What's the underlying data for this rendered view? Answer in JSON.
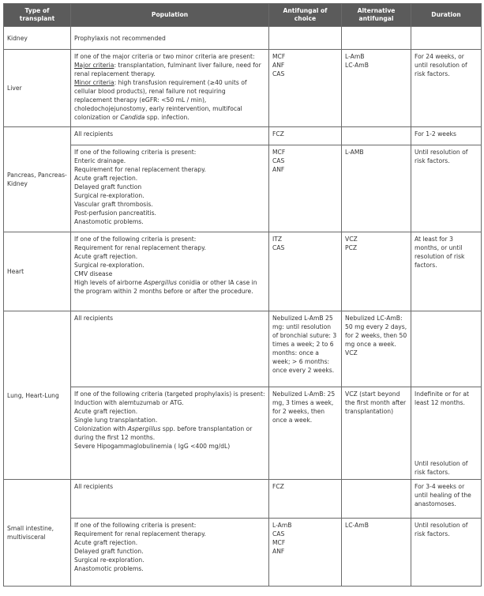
{
  "headers": [
    "Type of transplant",
    "Population",
    "Antifungal of choice",
    "Alternative antifungal",
    "Duration"
  ],
  "kidney": {
    "type": "Kidney",
    "population": "Prophylaxis not recommended"
  },
  "liver": {
    "type": "Liver",
    "intro": "If one of the major criteria or two minor criteria are present:",
    "major_label": "Major criteria",
    "major_text": ": transplantation, fulminant liver failure, need for renal replacement therapy.",
    "minor_label": "Minor criteria",
    "minor_text": ": high transfusion requirement (≥40 units of cellular blood products), renal failure not requiring replacement therapy (eGFR: <50 mL / min), choledochojejunostomy, early reintervention, multifocal colonization or ",
    "minor_italic": "Candida",
    "minor_end": " spp. infection.",
    "choice": [
      "MCF",
      "ANF",
      "CAS"
    ],
    "alternative": [
      "L-AmB",
      "LC-AmB"
    ],
    "duration": "For 24 weeks, or until resolution of risk factors."
  },
  "pancreas": {
    "type": "Pancreas, Pancreas-Kidney",
    "all": {
      "population": "All recipients",
      "choice": "FCZ",
      "duration": "For 1-2 weeks"
    },
    "criteria": {
      "lines": [
        "If one of the following criteria is present:",
        "Enteric drainage.",
        "Requirement for renal replacement therapy.",
        "Acute graft rejection.",
        "Delayed graft function",
        "Surgical re-exploration.",
        "Vascular graft thrombosis.",
        "Post-perfusion pancreatitis.",
        "Anastomotic problems."
      ],
      "choice": [
        "MCF",
        "CAS",
        "ANF"
      ],
      "alternative": "L-AMB",
      "duration": "Until resolution of risk factors."
    }
  },
  "heart": {
    "type": "Heart",
    "lines": [
      "If one of the following criteria is present:",
      "Requirement for renal replacement therapy.",
      "Acute graft rejection.",
      "Surgical re-exploration.",
      "CMV disease"
    ],
    "last_pre": "High levels of airborne ",
    "last_italic": "Aspergillus",
    "last_post": " conidia or other IA case in the program within 2 months before or after the procedure.",
    "choice": [
      "ITZ",
      "CAS"
    ],
    "alternative": [
      "VCZ",
      "PCZ"
    ],
    "duration": "At least for 3 months, or until resolution of risk factors."
  },
  "lung": {
    "type": "Lung, Heart-Lung",
    "all": {
      "population": "All recipients",
      "choice": "Nebulized L-AmB 25 mg: until resolution of bronchial suture: 3 times a week; 2 to 6 months: once a week; > 6 months: once every 2 weeks.",
      "alternative": [
        "Nebulized LC-AmB: 50 mg every 2 days, for 2 weeks, then 50 mg once a week.",
        "VCZ"
      ]
    },
    "criteria": {
      "lines": [
        "If one of the following criteria (targeted prophylaxis) is present:",
        "Induction with alemtuzumab or ATG.",
        "Acute graft rejection.",
        "Single lung transplantation."
      ],
      "col_pre": "Colonization with ",
      "col_italic": "Aspergillus",
      "col_post": " spp. before transplantation or during the first 12 months.",
      "last": "Severe Hipogammaglobulinemia ( IgG <400 mg/dL)",
      "choice": "Nebulized L-AmB: 25 mg, 3 times a week, for 2 weeks, then once a week.",
      "alternative": "VCZ (start beyond the first month after transplantation)",
      "duration_1": "Indefinite or for at least 12 months.",
      "duration_2": "Until resolution of risk factors."
    }
  },
  "intestine": {
    "type": "Small intestine, multivisceral",
    "all": {
      "population": "All recipients",
      "choice": "FCZ",
      "duration": "For 3-4 weeks or until healing of the anastomoses."
    },
    "criteria": {
      "lines": [
        "If one of the following criteria is present:",
        "Requirement for renal replacement therapy.",
        "Acute graft rejection.",
        "Delayed graft function.",
        "Surgical re-exploration.",
        "Anastomotic problems."
      ],
      "choice": [
        "L-AmB",
        "CAS",
        "MCF",
        "ANF"
      ],
      "alternative": "LC-AmB",
      "duration": "Until resolution of risk factors."
    }
  }
}
